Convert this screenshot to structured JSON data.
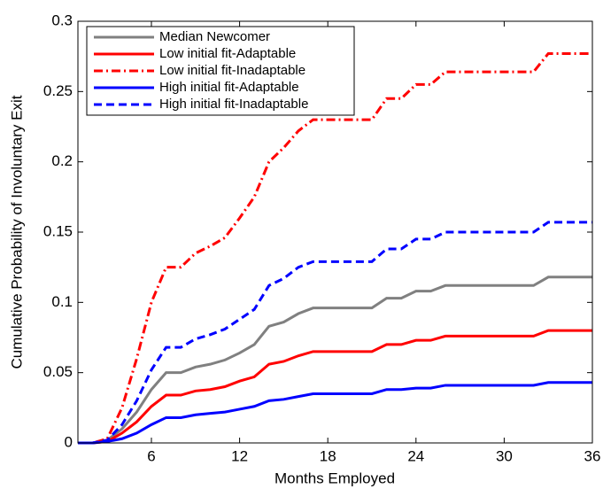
{
  "chart_data": {
    "type": "line",
    "xlabel": "Months Employed",
    "ylabel": "Cumulative Probability of Involuntary Exit",
    "x": [
      1,
      2,
      3,
      4,
      5,
      6,
      7,
      8,
      9,
      10,
      11,
      12,
      13,
      14,
      15,
      16,
      17,
      18,
      19,
      20,
      21,
      22,
      23,
      24,
      25,
      26,
      27,
      28,
      29,
      30,
      31,
      32,
      33,
      34,
      35,
      36
    ],
    "xlim": [
      1,
      36
    ],
    "xticks": [
      6,
      12,
      18,
      24,
      30,
      36
    ],
    "ylim": [
      0,
      0.3
    ],
    "yticks": [
      0,
      0.05,
      0.1,
      0.15,
      0.2,
      0.25,
      0.3
    ],
    "legend": "upper left",
    "series": [
      {
        "name": "Median Newcomer",
        "color": "#808080",
        "line_style": "solid",
        "values": [
          0,
          0,
          0.002,
          0.01,
          0.022,
          0.038,
          0.05,
          0.05,
          0.054,
          0.056,
          0.059,
          0.064,
          0.07,
          0.083,
          0.086,
          0.092,
          0.096,
          0.096,
          0.096,
          0.096,
          0.096,
          0.103,
          0.103,
          0.108,
          0.108,
          0.112,
          0.112,
          0.112,
          0.112,
          0.112,
          0.112,
          0.112,
          0.118,
          0.118,
          0.118,
          0.118
        ]
      },
      {
        "name": "Low initial fit-Adaptable",
        "color": "#ff0000",
        "line_style": "solid",
        "values": [
          0,
          0,
          0.001,
          0.007,
          0.015,
          0.026,
          0.034,
          0.034,
          0.037,
          0.038,
          0.04,
          0.044,
          0.047,
          0.056,
          0.058,
          0.062,
          0.065,
          0.065,
          0.065,
          0.065,
          0.065,
          0.07,
          0.07,
          0.073,
          0.073,
          0.076,
          0.076,
          0.076,
          0.076,
          0.076,
          0.076,
          0.076,
          0.08,
          0.08,
          0.08,
          0.08
        ]
      },
      {
        "name": "Low initial fit-Inadaptable",
        "color": "#ff0000",
        "line_style": "dashdot",
        "values": [
          0,
          0,
          0.003,
          0.025,
          0.06,
          0.1,
          0.125,
          0.125,
          0.135,
          0.14,
          0.146,
          0.16,
          0.175,
          0.2,
          0.21,
          0.222,
          0.23,
          0.23,
          0.23,
          0.23,
          0.23,
          0.245,
          0.245,
          0.255,
          0.255,
          0.264,
          0.264,
          0.264,
          0.264,
          0.264,
          0.264,
          0.264,
          0.277,
          0.277,
          0.277,
          0.277
        ]
      },
      {
        "name": "High initial fit-Adaptable",
        "color": "#0000ff",
        "line_style": "solid",
        "values": [
          0,
          0,
          0.001,
          0.003,
          0.007,
          0.013,
          0.018,
          0.018,
          0.02,
          0.021,
          0.022,
          0.024,
          0.026,
          0.03,
          0.031,
          0.033,
          0.035,
          0.035,
          0.035,
          0.035,
          0.035,
          0.038,
          0.038,
          0.039,
          0.039,
          0.041,
          0.041,
          0.041,
          0.041,
          0.041,
          0.041,
          0.041,
          0.043,
          0.043,
          0.043,
          0.043
        ]
      },
      {
        "name": "High initial fit-Inadaptable",
        "color": "#0000ff",
        "line_style": "dashed",
        "values": [
          0,
          0,
          0.002,
          0.013,
          0.03,
          0.052,
          0.068,
          0.068,
          0.074,
          0.077,
          0.081,
          0.088,
          0.095,
          0.112,
          0.117,
          0.125,
          0.129,
          0.129,
          0.129,
          0.129,
          0.129,
          0.138,
          0.138,
          0.145,
          0.145,
          0.15,
          0.15,
          0.15,
          0.15,
          0.15,
          0.15,
          0.15,
          0.157,
          0.157,
          0.157,
          0.157
        ]
      }
    ]
  }
}
